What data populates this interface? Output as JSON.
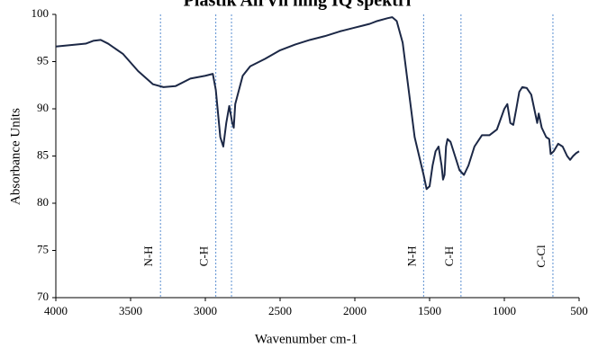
{
  "chart_data": {
    "type": "line",
    "title": "Plastik AirVil ning IQ spektri",
    "x_label": "Wavenumber cm-1",
    "y_label": "Absorbance Units",
    "xlim": [
      4000,
      500
    ],
    "xticks": [
      4000,
      3500,
      3000,
      2500,
      2000,
      1500,
      1000,
      500
    ],
    "ylim": [
      70,
      100
    ],
    "yticks": [
      70,
      75,
      80,
      85,
      90,
      95,
      100
    ],
    "vlines": [
      3300,
      2930,
      2825,
      1540,
      1290,
      675
    ],
    "vline_color": "#5b8fd0",
    "annotations": [
      {
        "text": "N-H",
        "x": 3300
      },
      {
        "text": "C-H",
        "x": 2930
      },
      {
        "text": "N-H",
        "x": 1540
      },
      {
        "text": "C-H",
        "x": 1290
      },
      {
        "text": "C-Cl",
        "x": 675
      }
    ],
    "series": [
      {
        "name": "spectrum",
        "color": "#1c2846",
        "x": [
          4000,
          3800,
          3750,
          3700,
          3650,
          3550,
          3450,
          3350,
          3280,
          3200,
          3100,
          3000,
          2950,
          2930,
          2900,
          2880,
          2860,
          2840,
          2820,
          2810,
          2800,
          2750,
          2700,
          2600,
          2500,
          2400,
          2300,
          2200,
          2100,
          2000,
          1950,
          1900,
          1850,
          1780,
          1750,
          1720,
          1680,
          1640,
          1600,
          1570,
          1540,
          1520,
          1500,
          1480,
          1460,
          1440,
          1420,
          1410,
          1400,
          1390,
          1380,
          1360,
          1330,
          1300,
          1270,
          1240,
          1200,
          1150,
          1100,
          1050,
          1000,
          980,
          960,
          940,
          920,
          900,
          880,
          850,
          820,
          800,
          780,
          770,
          750,
          720,
          700,
          690,
          670,
          640,
          610,
          580,
          560,
          540,
          520,
          500
        ],
        "values": [
          96.6,
          96.9,
          97.2,
          97.3,
          96.9,
          95.8,
          94,
          92.6,
          92.3,
          92.4,
          93.2,
          93.5,
          93.7,
          92,
          87,
          86,
          88.5,
          90.3,
          88.5,
          88,
          90.5,
          93.5,
          94.5,
          95.3,
          96.2,
          96.8,
          97.3,
          97.7,
          98.2,
          98.6,
          98.8,
          99,
          99.3,
          99.6,
          99.7,
          99.3,
          97,
          92,
          87,
          85,
          83,
          81.5,
          81.8,
          84,
          85.5,
          86,
          84,
          82.5,
          83,
          86,
          86.8,
          86.5,
          85,
          83.5,
          83,
          84,
          86,
          87.2,
          87.2,
          87.8,
          90,
          90.5,
          88.5,
          88.3,
          90,
          91.8,
          92.3,
          92.2,
          91.5,
          90,
          88.5,
          89.5,
          88,
          87,
          86.8,
          85.2,
          85.5,
          86.3,
          86,
          85,
          84.6,
          85,
          85.3,
          85.5
        ]
      }
    ]
  }
}
